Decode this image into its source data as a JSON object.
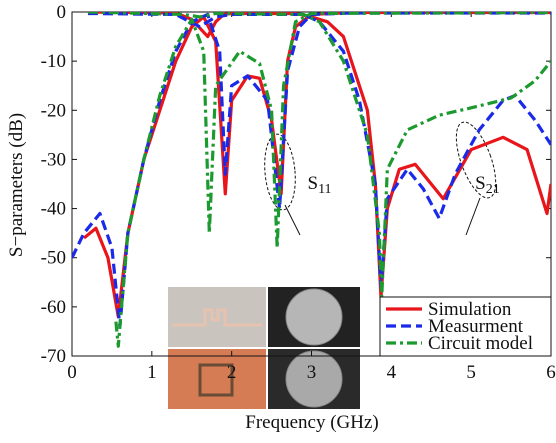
{
  "chart_data": {
    "type": "line",
    "xlabel": "Frequency (GHz)",
    "ylabel": "S−parameters (dB)",
    "xlim": [
      0,
      6
    ],
    "ylim": [
      -70,
      0
    ],
    "xticks": [
      0,
      1,
      2,
      3,
      4,
      5,
      6
    ],
    "yticks": [
      -70,
      -60,
      -50,
      -40,
      -30,
      -20,
      -10,
      0
    ],
    "legend": "lower right",
    "series": [
      {
        "name": "Simulation",
        "color": "#e8151b",
        "dash": "solid",
        "curves": [
          {
            "x": [
              0.15,
              0.3,
              0.45,
              0.58,
              0.7,
              0.9,
              1.1,
              1.3,
              1.5,
              1.65,
              1.8,
              1.92,
              2.0,
              2.2,
              2.35,
              2.5,
              2.62,
              2.7,
              2.8,
              3.0,
              3.5,
              6.0
            ],
            "values": [
              -46,
              -44,
              -50,
              -62,
              -45,
              -30,
              -20,
              -10,
              -3,
              -1,
              -6,
              -37,
              -18,
              -13,
              -13.5,
              -22,
              -37,
              -10,
              -3,
              -0.5,
              -0.1,
              -0.1
            ]
          },
          {
            "x": [
              0.2,
              1.3,
              1.5,
              1.7,
              1.8,
              1.9,
              2.0,
              2.8,
              3.0,
              3.2,
              3.4,
              3.6,
              3.7,
              3.8,
              3.87,
              3.95,
              4.1,
              4.3,
              4.65,
              5.0,
              5.4,
              5.7,
              5.95,
              6.0
            ],
            "values": [
              0,
              -0.2,
              -1.5,
              -5,
              -2,
              -0.5,
              -0.3,
              -0.3,
              -1,
              -2,
              -5,
              -15,
              -20,
              -35,
              -58,
              -40,
              -32,
              -31,
              -38,
              -28,
              -25.5,
              -28,
              -41,
              -35
            ]
          }
        ]
      },
      {
        "name": "Measurment",
        "color": "#1a2ae8",
        "dash": "dashed",
        "curves": [
          {
            "x": [
              0.0,
              0.15,
              0.35,
              0.5,
              0.6,
              0.7,
              0.9,
              1.1,
              1.3,
              1.5,
              1.7,
              1.85,
              1.92,
              2.0,
              2.2,
              2.45,
              2.6,
              2.7,
              2.85,
              3.0,
              3.5,
              6.0
            ],
            "values": [
              -50,
              -45,
              -41,
              -48,
              -64,
              -45,
              -30,
              -18,
              -8,
              -2,
              -0.5,
              -8,
              -33,
              -15,
              -13,
              -18,
              -40,
              -12,
              -3,
              -0.5,
              -0.2,
              -0.2
            ]
          },
          {
            "x": [
              0.2,
              1.3,
              1.6,
              1.8,
              2.0,
              2.9,
              3.1,
              3.4,
              3.6,
              3.8,
              3.87,
              3.95,
              4.2,
              4.4,
              4.6,
              4.8,
              5.1,
              5.4,
              5.55,
              5.8,
              6.0
            ],
            "values": [
              -0.3,
              -0.5,
              -3,
              -1,
              -0.5,
              -0.5,
              -2,
              -8,
              -18,
              -35,
              -56,
              -38,
              -32,
              -36,
              -42,
              -33,
              -24,
              -18,
              -17,
              -22,
              -27
            ]
          }
        ]
      },
      {
        "name": "Circuit model",
        "color": "#1d9a2f",
        "dash": "dashdot",
        "curves": [
          {
            "x": [
              0.55,
              0.58,
              0.62,
              0.7,
              0.9,
              1.1,
              1.3,
              1.5,
              1.65,
              1.72,
              1.8,
              2.1,
              2.35,
              2.5,
              2.57,
              2.65,
              2.8,
              3.0,
              6.0
            ],
            "values": [
              -63,
              -68,
              -60,
              -45,
              -30,
              -17,
              -7,
              -1.5,
              -8,
              -45,
              -15,
              -8,
              -10.5,
              -20,
              -48,
              -15,
              -2,
              -0.3,
              -0.1
            ]
          },
          {
            "x": [
              0.2,
              1.4,
              1.6,
              1.8,
              2.9,
              3.1,
              3.4,
              3.7,
              3.85,
              3.88,
              3.95,
              4.2,
              4.6,
              5.0,
              5.5,
              5.8,
              6.0
            ],
            "values": [
              0,
              -0.5,
              -1,
              -0.3,
              -0.5,
              -2,
              -10,
              -25,
              -45,
              -58,
              -32,
              -24,
              -21,
              -19.5,
              -17.5,
              -14,
              -10
            ]
          }
        ]
      }
    ],
    "annotations": [
      {
        "text": "S",
        "sub": "11",
        "x": 2.95,
        "y": -36
      },
      {
        "text": "S",
        "sub": "21",
        "x": 5.05,
        "y": -36
      }
    ]
  }
}
